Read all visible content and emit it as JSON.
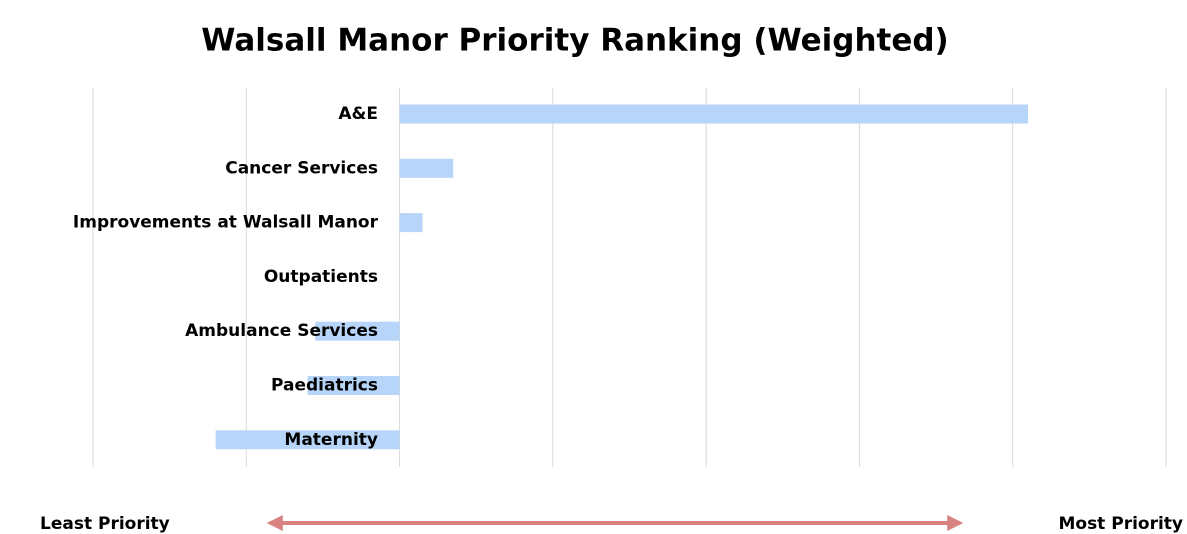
{
  "chart_data": {
    "type": "barh",
    "title": "Walsall Manor Priority Ranking  (Weighted)",
    "categories": [
      "A&E",
      "Cancer Services",
      "Improvements at Walsall Manor",
      "Outpatients",
      "Ambulance Services",
      "Paediatrics",
      "Maternity"
    ],
    "values": [
      4.1,
      0.35,
      0.15,
      0,
      -0.55,
      -0.6,
      -1.2
    ],
    "color": "#b7d5f8",
    "xlim": [
      -2,
      5
    ],
    "xticks": [
      -2,
      -1,
      0,
      1,
      2,
      3,
      4,
      5
    ],
    "grid": true,
    "annotations": [
      "Least Priority",
      "Most Priority"
    ],
    "arrow_color": "#d98282"
  }
}
